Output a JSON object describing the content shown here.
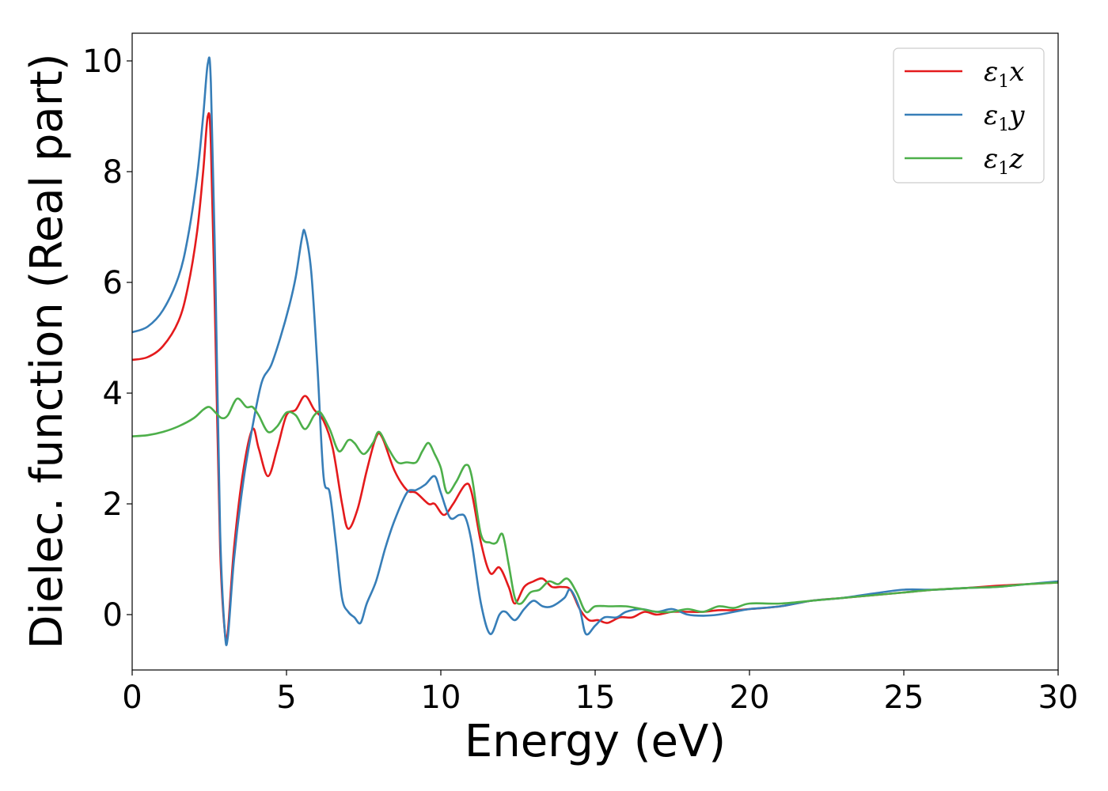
{
  "chart_data": {
    "type": "line",
    "title": "",
    "xlabel": "Energy (eV)",
    "ylabel": "Dielec. function (Real part)",
    "xlim": [
      0,
      30
    ],
    "ylim": [
      -1,
      10.5
    ],
    "xticks": [
      0,
      5,
      10,
      15,
      20,
      25,
      30
    ],
    "yticks": [
      0,
      2,
      4,
      6,
      8,
      10
    ],
    "grid": false,
    "legend_position": "top-right",
    "series": [
      {
        "name": "ε1x",
        "legend_main": "ε",
        "legend_sub": "1",
        "legend_axis": "x",
        "color": "#e41a1c",
        "x": [
          0,
          0.5,
          1.0,
          1.5,
          1.8,
          2.1,
          2.3,
          2.45,
          2.55,
          2.7,
          2.85,
          3.0,
          3.1,
          3.3,
          3.6,
          3.9,
          4.1,
          4.4,
          4.7,
          5.0,
          5.3,
          5.6,
          5.9,
          6.2,
          6.5,
          6.8,
          7.0,
          7.3,
          7.6,
          7.9,
          8.1,
          8.5,
          8.9,
          9.2,
          9.6,
          9.8,
          10.1,
          10.4,
          10.8,
          11.0,
          11.3,
          11.6,
          11.9,
          12.2,
          12.4,
          12.7,
          13.0,
          13.3,
          13.6,
          13.9,
          14.2,
          14.5,
          14.8,
          15.1,
          15.4,
          15.8,
          16.2,
          16.6,
          17.0,
          17.5,
          18.0,
          18.5,
          19.0,
          19.5,
          20.0,
          21.0,
          22.0,
          23.0,
          24.0,
          25.0,
          26.0,
          27.0,
          28.0,
          29.0,
          30.0
        ],
        "y": [
          4.6,
          4.65,
          4.85,
          5.3,
          5.9,
          6.9,
          8.0,
          9.0,
          8.5,
          5.0,
          1.2,
          -0.3,
          -0.3,
          1.2,
          2.6,
          3.35,
          3.0,
          2.5,
          3.0,
          3.6,
          3.7,
          3.95,
          3.7,
          3.5,
          3.0,
          2.0,
          1.55,
          1.9,
          2.6,
          3.2,
          3.2,
          2.6,
          2.25,
          2.2,
          2.0,
          2.0,
          1.8,
          2.0,
          2.35,
          2.2,
          1.3,
          0.75,
          0.85,
          0.5,
          0.2,
          0.5,
          0.6,
          0.65,
          0.5,
          0.5,
          0.45,
          0.1,
          -0.1,
          -0.1,
          -0.15,
          -0.05,
          -0.05,
          0.05,
          0.0,
          0.05,
          0.05,
          0.05,
          0.08,
          0.08,
          0.1,
          0.15,
          0.25,
          0.3,
          0.35,
          0.4,
          0.45,
          0.48,
          0.52,
          0.55,
          0.58
        ]
      },
      {
        "name": "ε1y",
        "legend_main": "ε",
        "legend_sub": "1",
        "legend_axis": "y",
        "color": "#377eb8",
        "x": [
          0,
          0.5,
          1.0,
          1.5,
          1.8,
          2.1,
          2.3,
          2.45,
          2.55,
          2.7,
          2.85,
          3.0,
          3.1,
          3.3,
          3.6,
          3.9,
          4.2,
          4.5,
          4.8,
          5.1,
          5.3,
          5.5,
          5.6,
          5.8,
          6.0,
          6.2,
          6.4,
          6.6,
          6.8,
          7.0,
          7.2,
          7.4,
          7.6,
          7.9,
          8.2,
          8.5,
          8.9,
          9.2,
          9.5,
          9.8,
          10.0,
          10.3,
          10.6,
          10.8,
          11.0,
          11.3,
          11.6,
          11.9,
          12.1,
          12.4,
          12.7,
          13.0,
          13.3,
          13.6,
          14.0,
          14.2,
          14.5,
          14.7,
          15.0,
          15.3,
          15.7,
          16.0,
          16.5,
          17.0,
          17.5,
          18.0,
          18.5,
          19.0,
          19.5,
          20.0,
          21.0,
          22.0,
          23.0,
          24.0,
          25.0,
          26.0,
          27.0,
          28.0,
          29.0,
          30.0
        ],
        "y": [
          5.1,
          5.2,
          5.5,
          6.1,
          6.8,
          7.9,
          9.0,
          9.95,
          9.6,
          6.0,
          1.5,
          -0.3,
          -0.4,
          1.0,
          2.4,
          3.4,
          4.2,
          4.5,
          5.0,
          5.6,
          6.1,
          6.8,
          6.9,
          6.2,
          4.5,
          2.5,
          2.2,
          1.3,
          0.3,
          0.05,
          -0.05,
          -0.15,
          0.2,
          0.6,
          1.2,
          1.7,
          2.2,
          2.25,
          2.35,
          2.5,
          2.2,
          1.75,
          1.8,
          1.75,
          1.3,
          0.2,
          -0.35,
          0.0,
          0.05,
          -0.1,
          0.1,
          0.25,
          0.15,
          0.15,
          0.3,
          0.45,
          0.1,
          -0.35,
          -0.2,
          -0.05,
          -0.05,
          0.05,
          0.1,
          0.05,
          0.1,
          0.0,
          -0.02,
          0.0,
          0.05,
          0.1,
          0.15,
          0.25,
          0.3,
          0.38,
          0.45,
          0.45,
          0.48,
          0.5,
          0.55,
          0.6
        ]
      },
      {
        "name": "ε1z",
        "legend_main": "ε",
        "legend_sub": "1",
        "legend_axis": "z",
        "color": "#4daf4a",
        "x": [
          0,
          0.5,
          1.0,
          1.5,
          2.0,
          2.3,
          2.5,
          2.7,
          2.9,
          3.1,
          3.4,
          3.7,
          3.9,
          4.1,
          4.4,
          4.7,
          5.0,
          5.3,
          5.6,
          5.9,
          6.1,
          6.4,
          6.7,
          7.0,
          7.2,
          7.5,
          7.8,
          8.0,
          8.3,
          8.6,
          8.9,
          9.2,
          9.4,
          9.6,
          9.8,
          10.0,
          10.2,
          10.5,
          10.8,
          11.0,
          11.3,
          11.6,
          11.8,
          12.0,
          12.2,
          12.4,
          12.6,
          12.9,
          13.2,
          13.5,
          13.8,
          14.1,
          14.4,
          14.7,
          15.0,
          15.5,
          16.0,
          16.5,
          17.0,
          17.5,
          18.0,
          18.5,
          19.0,
          19.5,
          20.0,
          21.0,
          22.0,
          23.0,
          24.0,
          25.0,
          26.0,
          27.0,
          28.0,
          29.0,
          30.0
        ],
        "y": [
          3.22,
          3.24,
          3.3,
          3.4,
          3.55,
          3.7,
          3.75,
          3.65,
          3.55,
          3.6,
          3.9,
          3.75,
          3.75,
          3.6,
          3.3,
          3.4,
          3.65,
          3.6,
          3.35,
          3.6,
          3.65,
          3.35,
          2.95,
          3.15,
          3.1,
          2.9,
          3.1,
          3.3,
          3.0,
          2.75,
          2.75,
          2.75,
          2.95,
          3.1,
          2.9,
          2.65,
          2.2,
          2.4,
          2.7,
          2.5,
          1.45,
          1.3,
          1.3,
          1.45,
          0.9,
          0.3,
          0.2,
          0.4,
          0.45,
          0.6,
          0.55,
          0.65,
          0.4,
          0.05,
          0.15,
          0.15,
          0.15,
          0.1,
          0.05,
          0.05,
          0.1,
          0.05,
          0.15,
          0.12,
          0.2,
          0.2,
          0.25,
          0.3,
          0.35,
          0.4,
          0.45,
          0.48,
          0.5,
          0.55,
          0.58
        ]
      }
    ]
  }
}
